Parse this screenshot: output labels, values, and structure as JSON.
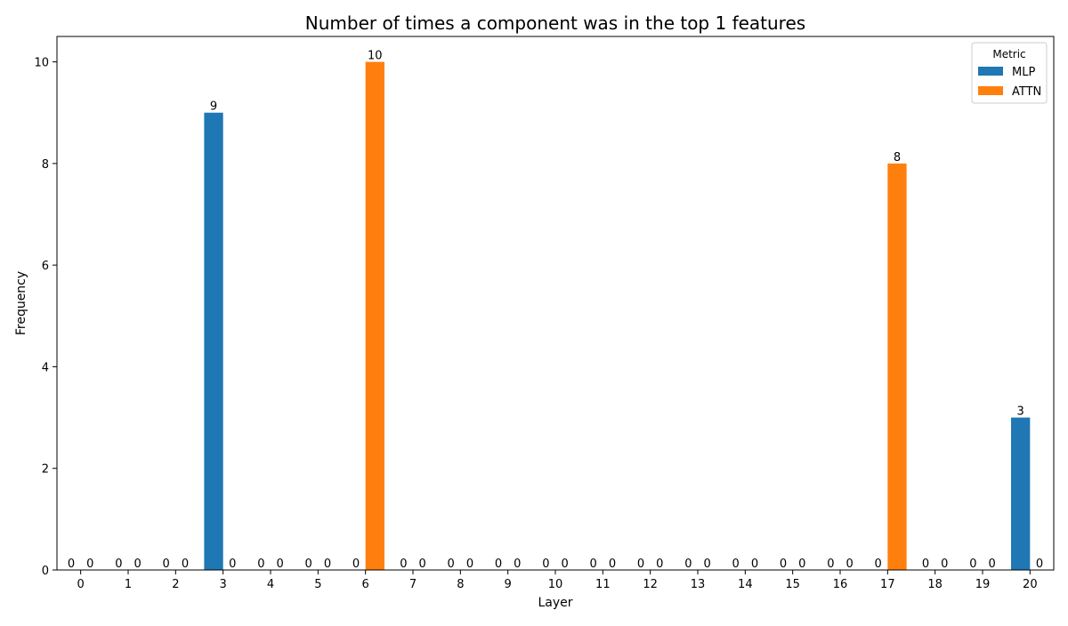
{
  "chart_data": {
    "type": "bar",
    "title": "Number of times a component was in the top 1 features",
    "xlabel": "Layer",
    "ylabel": "Frequency",
    "categories": [
      "0",
      "1",
      "2",
      "3",
      "4",
      "5",
      "6",
      "7",
      "8",
      "9",
      "10",
      "11",
      "12",
      "13",
      "14",
      "15",
      "16",
      "17",
      "18",
      "19",
      "20"
    ],
    "series": [
      {
        "name": "MLP",
        "color": "#1f77b4",
        "values": [
          0,
          0,
          0,
          9,
          0,
          0,
          0,
          0,
          0,
          0,
          0,
          0,
          0,
          0,
          0,
          0,
          0,
          0,
          0,
          0,
          3
        ]
      },
      {
        "name": "ATTN",
        "color": "#ff7f0e",
        "values": [
          0,
          0,
          0,
          0,
          0,
          0,
          10,
          0,
          0,
          0,
          0,
          0,
          0,
          0,
          0,
          0,
          0,
          8,
          0,
          0,
          0
        ]
      }
    ],
    "ylim": [
      0,
      10.5
    ],
    "yticks": [
      0,
      2,
      4,
      6,
      8,
      10
    ],
    "legend": {
      "title": "Metric",
      "position": "top-right"
    },
    "grid": false
  }
}
